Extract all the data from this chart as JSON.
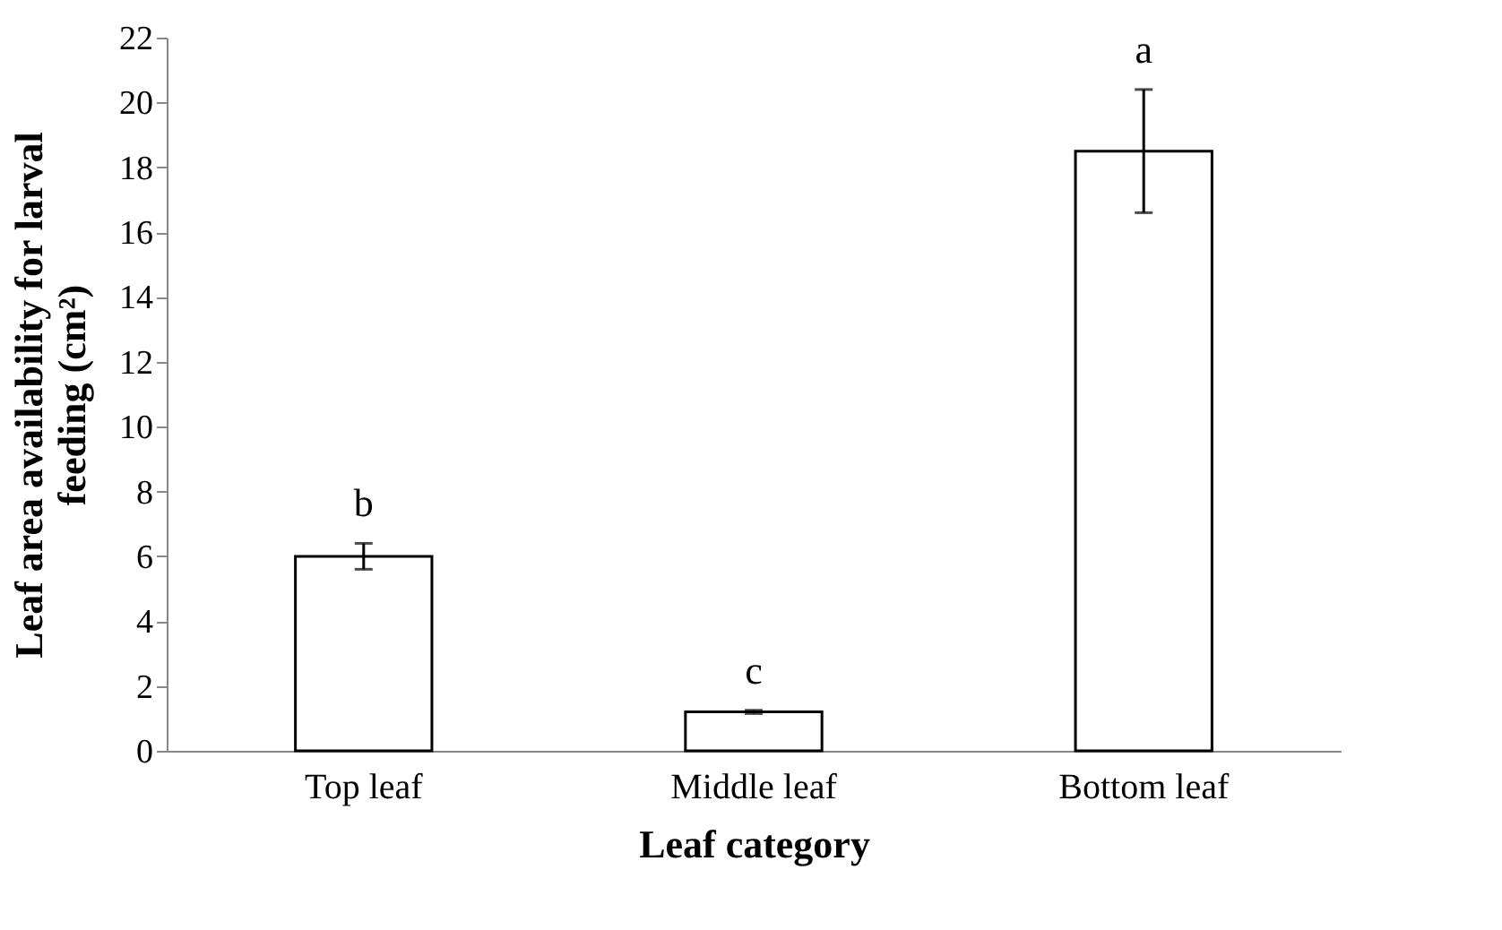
{
  "chart_data": {
    "type": "bar",
    "xlabel": "Leaf category",
    "ylabel": "Leaf area availability for larval feeding (cm²)",
    "categories": [
      "Top leaf",
      "Middle leaf",
      "Bottom leaf"
    ],
    "values": [
      6.0,
      1.2,
      18.5
    ],
    "errors": [
      0.4,
      0.05,
      1.9
    ],
    "color": "#ffffff",
    "ylim": [
      0,
      22
    ],
    "yticks": [
      0,
      2,
      4,
      6,
      8,
      10,
      12,
      14,
      16,
      18,
      20,
      22
    ],
    "grid": false,
    "annotations": [
      "b",
      "c",
      "a"
    ]
  }
}
